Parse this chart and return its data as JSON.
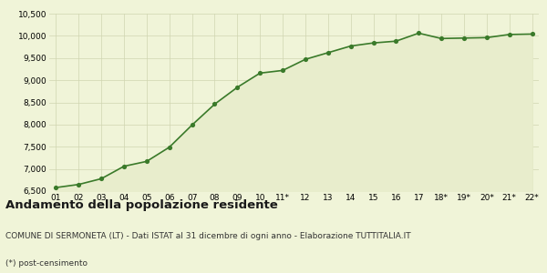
{
  "x_labels": [
    "01",
    "02",
    "03",
    "04",
    "05",
    "06",
    "07",
    "08",
    "09",
    "10",
    "11*",
    "12",
    "13",
    "14",
    "15",
    "16",
    "17",
    "18*",
    "19*",
    "20*",
    "21*",
    "22*"
  ],
  "y_values": [
    6580,
    6650,
    6780,
    7060,
    7170,
    7490,
    7990,
    8460,
    8840,
    9160,
    9220,
    9470,
    9620,
    9770,
    9840,
    9880,
    10060,
    9940,
    9950,
    9960,
    10030,
    10040
  ],
  "line_color": "#3a7a2a",
  "fill_color": "#e8edcc",
  "marker_color": "#3a7a2a",
  "bg_color": "#f0f4d8",
  "grid_color": "#d0d5b0",
  "ylim_min": 6500,
  "ylim_max": 10500,
  "yticks": [
    6500,
    7000,
    7500,
    8000,
    8500,
    9000,
    9500,
    10000,
    10500
  ],
  "title": "Andamento della popolazione residente",
  "subtitle": "COMUNE DI SERMONETA (LT) - Dati ISTAT al 31 dicembre di ogni anno - Elaborazione TUTTITALIA.IT",
  "footnote": "(*) post-censimento",
  "title_fontsize": 9.5,
  "subtitle_fontsize": 6.5,
  "footnote_fontsize": 6.5,
  "tick_fontsize": 6.5,
  "ytick_fontsize": 6.5
}
